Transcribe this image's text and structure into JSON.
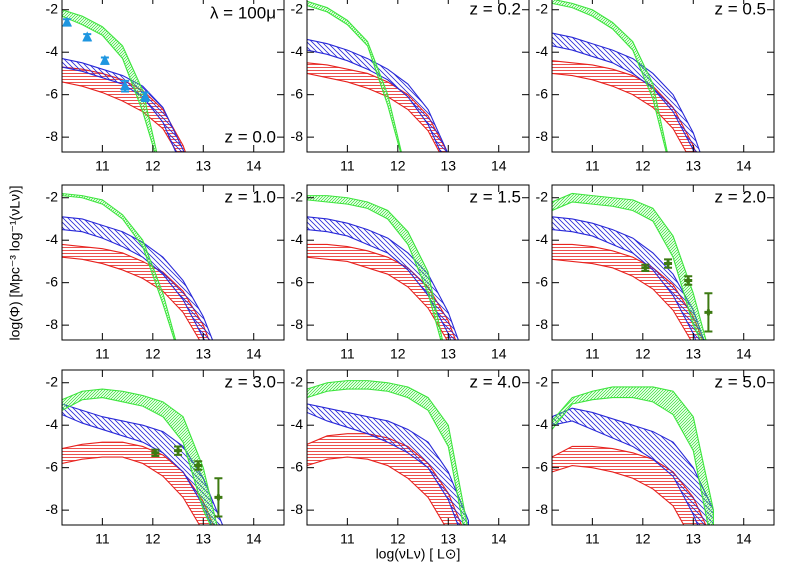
{
  "figure": {
    "x_label": "log(νLν)  [ L⊙]",
    "y_label": "log(Φ)  [Mpc⁻³ log⁻¹(νLν)]"
  },
  "chart_data": [
    {
      "type": "band",
      "title": "λ = 100μ",
      "label": "z = 0.0",
      "xlim": [
        10.2,
        14.6
      ],
      "ylim": [
        -8.7,
        -1.4
      ],
      "xticks": [
        11,
        12,
        13,
        14
      ],
      "yticks": [
        -2,
        -4,
        -6,
        -8
      ],
      "x": [
        10.2,
        10.6,
        11.0,
        11.4,
        11.8,
        12.2,
        12.6,
        13.0,
        13.4
      ],
      "series": [
        {
          "color": "#e8231f",
          "hatch": "horizontal",
          "upper": [
            -4.7,
            -4.8,
            -5.0,
            -5.3,
            -5.8,
            -6.7,
            -8.4,
            -11,
            null
          ],
          "lower": [
            -5.4,
            -5.6,
            -5.9,
            -6.3,
            -6.8,
            -7.6,
            -9.2,
            -12,
            null
          ]
        },
        {
          "color": "#2a2ad8",
          "hatch": "backslash",
          "upper": [
            -4.3,
            -4.5,
            -4.8,
            -5.1,
            -5.6,
            -6.6,
            -8.6,
            -11,
            null
          ],
          "lower": [
            -4.7,
            -4.9,
            -5.2,
            -5.5,
            -6.1,
            -7.3,
            -9.5,
            -12,
            null
          ]
        },
        {
          "color": "#3ee63e",
          "hatch": "slash",
          "upper": [
            -2.0,
            -2.3,
            -2.8,
            -3.7,
            -5.8,
            -10,
            null,
            null,
            null
          ],
          "lower": [
            -2.3,
            -2.7,
            -3.2,
            -4.3,
            -6.8,
            -10,
            null,
            null,
            null
          ]
        }
      ],
      "points": {
        "marker": "triangle",
        "color": "#1e96e0",
        "x": [
          10.3,
          10.7,
          11.05,
          11.45,
          11.85
        ],
        "values": [
          -2.6,
          -3.3,
          -4.4,
          -5.6,
          -6.1
        ],
        "errors": [
          0.15,
          0.15,
          0.15,
          0.25,
          0.2
        ]
      }
    },
    {
      "type": "band",
      "label": "z = 0.2",
      "xlim": [
        10.2,
        14.6
      ],
      "ylim": [
        -8.7,
        -1.4
      ],
      "xticks": [
        11,
        12,
        13,
        14
      ],
      "yticks": [
        -2,
        -4,
        -6,
        -8
      ],
      "x": [
        10.2,
        10.6,
        11.0,
        11.4,
        11.8,
        12.2,
        12.6,
        13.0,
        13.4
      ],
      "series": [
        {
          "color": "#e8231f",
          "hatch": "horizontal",
          "upper": [
            -4.5,
            -4.6,
            -4.8,
            -5.0,
            -5.4,
            -6.0,
            -7.0,
            -8.8,
            -11
          ],
          "lower": [
            -5.0,
            -5.2,
            -5.4,
            -5.7,
            -6.1,
            -6.7,
            -7.7,
            -9.5,
            -12
          ]
        },
        {
          "color": "#2a2ad8",
          "hatch": "backslash",
          "upper": [
            -3.4,
            -3.6,
            -3.9,
            -4.3,
            -4.8,
            -5.5,
            -6.7,
            -8.8,
            -11
          ],
          "lower": [
            -3.9,
            -4.1,
            -4.4,
            -4.8,
            -5.3,
            -6.1,
            -7.4,
            -9.5,
            -12
          ]
        },
        {
          "color": "#3ee63e",
          "hatch": "slash",
          "upper": [
            -1.6,
            -1.9,
            -2.5,
            -3.5,
            -6.0,
            -10,
            null,
            null,
            null
          ],
          "lower": [
            -1.8,
            -2.1,
            -2.7,
            -3.7,
            -6.5,
            -10,
            null,
            null,
            null
          ]
        }
      ]
    },
    {
      "type": "band",
      "label": "z = 0.5",
      "xlim": [
        10.2,
        14.6
      ],
      "ylim": [
        -8.7,
        -1.4
      ],
      "xticks": [
        11,
        12,
        13,
        14
      ],
      "yticks": [
        -2,
        -4,
        -6,
        -8
      ],
      "x": [
        10.2,
        10.6,
        11.0,
        11.4,
        11.8,
        12.2,
        12.6,
        13.0,
        13.4
      ],
      "series": [
        {
          "color": "#e8231f",
          "hatch": "horizontal",
          "upper": [
            -4.4,
            -4.5,
            -4.6,
            -4.8,
            -5.1,
            -5.6,
            -6.6,
            -8.4,
            -11
          ],
          "lower": [
            -5.0,
            -5.1,
            -5.3,
            -5.6,
            -6.0,
            -6.6,
            -7.6,
            -9.3,
            -12
          ]
        },
        {
          "color": "#2a2ad8",
          "hatch": "backslash",
          "upper": [
            -3.1,
            -3.3,
            -3.6,
            -3.9,
            -4.3,
            -5.0,
            -6.0,
            -7.8,
            -10.5
          ],
          "lower": [
            -3.7,
            -3.9,
            -4.2,
            -4.5,
            -5.0,
            -5.7,
            -6.8,
            -8.6,
            -11
          ]
        },
        {
          "color": "#3ee63e",
          "hatch": "slash",
          "upper": [
            -1.5,
            -1.7,
            -2.0,
            -2.6,
            -3.5,
            -5.5,
            -10,
            null,
            null
          ],
          "lower": [
            -1.7,
            -1.9,
            -2.3,
            -2.9,
            -3.9,
            -6.2,
            -10,
            null,
            null
          ]
        }
      ]
    },
    {
      "type": "band",
      "label": "z = 1.0",
      "xlim": [
        10.2,
        14.6
      ],
      "ylim": [
        -8.7,
        -1.4
      ],
      "xticks": [
        11,
        12,
        13,
        14
      ],
      "yticks": [
        -2,
        -4,
        -6,
        -8
      ],
      "x": [
        10.2,
        10.6,
        11.0,
        11.4,
        11.8,
        12.2,
        12.6,
        13.0,
        13.4
      ],
      "series": [
        {
          "color": "#e8231f",
          "hatch": "horizontal",
          "upper": [
            -4.2,
            -4.3,
            -4.4,
            -4.6,
            -5.0,
            -5.5,
            -6.4,
            -8,
            -10.5
          ],
          "lower": [
            -4.8,
            -4.9,
            -5.1,
            -5.4,
            -5.8,
            -6.4,
            -7.4,
            -9,
            -11.5
          ]
        },
        {
          "color": "#2a2ad8",
          "hatch": "backslash",
          "upper": [
            -2.9,
            -3.0,
            -3.3,
            -3.6,
            -4.1,
            -4.8,
            -5.9,
            -7.6,
            -10
          ],
          "lower": [
            -3.5,
            -3.6,
            -3.9,
            -4.3,
            -4.8,
            -5.6,
            -6.8,
            -8.6,
            -11
          ]
        },
        {
          "color": "#3ee63e",
          "hatch": "slash",
          "upper": [
            -1.8,
            -1.9,
            -2.1,
            -2.8,
            -4.0,
            -6.5,
            -10,
            null,
            null
          ],
          "lower": [
            -1.9,
            -2.0,
            -2.3,
            -3.0,
            -4.3,
            -7,
            -10,
            null,
            null
          ]
        }
      ]
    },
    {
      "type": "band",
      "label": "z = 1.5",
      "xlim": [
        10.2,
        14.6
      ],
      "ylim": [
        -8.7,
        -1.4
      ],
      "xticks": [
        11,
        12,
        13,
        14
      ],
      "yticks": [
        -2,
        -4,
        -6,
        -8
      ],
      "x": [
        10.2,
        10.6,
        11.0,
        11.4,
        11.8,
        12.2,
        12.6,
        13.0,
        13.4
      ],
      "series": [
        {
          "color": "#e8231f",
          "hatch": "horizontal",
          "upper": [
            -4.2,
            -4.2,
            -4.3,
            -4.5,
            -4.8,
            -5.3,
            -6.2,
            -7.8,
            -10.3
          ],
          "lower": [
            -4.8,
            -4.9,
            -5.0,
            -5.3,
            -5.6,
            -6.2,
            -7.2,
            -8.8,
            -11.2
          ]
        },
        {
          "color": "#2a2ad8",
          "hatch": "backslash",
          "upper": [
            -2.9,
            -3.0,
            -3.2,
            -3.5,
            -3.9,
            -4.6,
            -5.6,
            -7.4,
            -10
          ],
          "lower": [
            -3.5,
            -3.6,
            -3.8,
            -4.2,
            -4.6,
            -5.4,
            -6.6,
            -8.4,
            -11
          ]
        },
        {
          "color": "#3ee63e",
          "hatch": "slash",
          "upper": [
            -1.9,
            -1.9,
            -2.0,
            -2.2,
            -2.6,
            -3.6,
            -5.5,
            -10,
            null
          ],
          "lower": [
            -2.1,
            -2.2,
            -2.3,
            -2.5,
            -3.0,
            -4.2,
            -6.5,
            -10,
            null
          ]
        }
      ]
    },
    {
      "type": "band",
      "label": "z = 2.0",
      "xlim": [
        10.2,
        14.6
      ],
      "ylim": [
        -8.7,
        -1.4
      ],
      "xticks": [
        11,
        12,
        13,
        14
      ],
      "yticks": [
        -2,
        -4,
        -6,
        -8
      ],
      "x": [
        10.2,
        10.6,
        11.0,
        11.4,
        11.8,
        12.2,
        12.6,
        13.0,
        13.4
      ],
      "series": [
        {
          "color": "#e8231f",
          "hatch": "horizontal",
          "upper": [
            -4.2,
            -4.2,
            -4.3,
            -4.5,
            -4.8,
            -5.3,
            -6.1,
            -7.6,
            -10
          ],
          "lower": [
            -4.9,
            -5.0,
            -5.1,
            -5.3,
            -5.7,
            -6.3,
            -7.3,
            -8.9,
            -11.2
          ]
        },
        {
          "color": "#2a2ad8",
          "hatch": "backslash",
          "upper": [
            -2.9,
            -3.0,
            -3.2,
            -3.5,
            -3.9,
            -4.6,
            -5.6,
            -7.3,
            -10
          ],
          "lower": [
            -3.5,
            -3.6,
            -3.8,
            -4.2,
            -4.6,
            -5.4,
            -6.6,
            -8.4,
            -11
          ]
        },
        {
          "color": "#3ee63e",
          "hatch": "slash",
          "upper": [
            -2.2,
            -1.8,
            -1.9,
            -2.0,
            -2.1,
            -2.5,
            -3.8,
            -6.5,
            -10
          ],
          "lower": [
            -2.6,
            -2.2,
            -2.3,
            -2.4,
            -2.6,
            -3.1,
            -4.8,
            -8,
            -10
          ]
        }
      ],
      "points": {
        "marker": "plus",
        "color": "#3d7a12",
        "x": [
          12.05,
          12.5,
          12.9,
          13.3
        ],
        "values": [
          -5.3,
          -5.1,
          -5.9,
          -7.4
        ],
        "errors": [
          0.15,
          0.2,
          0.2,
          0.9
        ]
      }
    },
    {
      "type": "band",
      "label": "z = 3.0",
      "xlim": [
        10.2,
        14.6
      ],
      "ylim": [
        -8.7,
        -1.4
      ],
      "xticks": [
        11,
        12,
        13,
        14
      ],
      "yticks": [
        -2,
        -4,
        -6,
        -8
      ],
      "x": [
        10.2,
        10.6,
        11.0,
        11.4,
        11.8,
        12.2,
        12.6,
        13.0,
        13.4
      ],
      "series": [
        {
          "color": "#e8231f",
          "hatch": "horizontal",
          "upper": [
            -5.1,
            -4.9,
            -4.8,
            -4.8,
            -5.0,
            -5.4,
            -6.2,
            -7.6,
            -9.8
          ],
          "lower": [
            -5.8,
            -5.6,
            -5.5,
            -5.5,
            -5.8,
            -6.4,
            -7.4,
            -9,
            -11
          ]
        },
        {
          "color": "#2a2ad8",
          "hatch": "backslash",
          "upper": [
            -3.0,
            -3.3,
            -3.6,
            -3.8,
            -4.0,
            -4.3,
            -5.0,
            -6.5,
            -8.8
          ],
          "lower": [
            -3.5,
            -3.9,
            -4.2,
            -4.5,
            -4.8,
            -5.3,
            -6.2,
            -7.8,
            -10
          ]
        },
        {
          "color": "#3ee63e",
          "hatch": "slash",
          "upper": [
            -2.8,
            -2.4,
            -2.3,
            -2.4,
            -2.6,
            -2.9,
            -3.6,
            -6,
            -10
          ],
          "lower": [
            -3.3,
            -2.8,
            -2.7,
            -2.9,
            -3.1,
            -3.6,
            -4.8,
            -8,
            -10
          ]
        }
      ],
      "points": {
        "marker": "plus",
        "color": "#3d7a12",
        "x": [
          12.05,
          12.5,
          12.9,
          13.3
        ],
        "values": [
          -5.3,
          -5.2,
          -5.9,
          -7.4
        ],
        "errors": [
          0.15,
          0.2,
          0.2,
          0.9
        ]
      }
    },
    {
      "type": "band",
      "label": "z = 4.0",
      "xlim": [
        10.2,
        14.6
      ],
      "ylim": [
        -8.7,
        -1.4
      ],
      "xticks": [
        11,
        12,
        13,
        14
      ],
      "yticks": [
        -2,
        -4,
        -6,
        -8
      ],
      "x": [
        10.2,
        10.6,
        11.0,
        11.4,
        11.8,
        12.2,
        12.6,
        13.0,
        13.4
      ],
      "series": [
        {
          "color": "#e8231f",
          "hatch": "horizontal",
          "upper": [
            -4.9,
            -4.5,
            -4.4,
            -4.4,
            -4.6,
            -5.0,
            -5.8,
            -7.2,
            -9.5
          ],
          "lower": [
            -5.9,
            -5.6,
            -5.5,
            -5.6,
            -5.9,
            -6.5,
            -7.4,
            -9,
            -11
          ]
        },
        {
          "color": "#2a2ad8",
          "hatch": "backslash",
          "upper": [
            -3.0,
            -3.2,
            -3.4,
            -3.6,
            -3.8,
            -4.2,
            -4.8,
            -6.2,
            -8.5
          ],
          "lower": [
            -3.4,
            -3.8,
            -4.1,
            -4.4,
            -4.8,
            -5.3,
            -6.0,
            -7.5,
            -10
          ]
        },
        {
          "color": "#3ee63e",
          "hatch": "slash",
          "upper": [
            -2.3,
            -2.0,
            -1.9,
            -1.9,
            -2.0,
            -2.2,
            -2.7,
            -4,
            -9
          ],
          "lower": [
            -2.7,
            -2.4,
            -2.3,
            -2.3,
            -2.4,
            -2.7,
            -3.3,
            -5,
            -10
          ]
        }
      ]
    },
    {
      "type": "band",
      "label": "z = 5.0",
      "xlim": [
        10.2,
        14.6
      ],
      "ylim": [
        -8.7,
        -1.4
      ],
      "xticks": [
        11,
        12,
        13,
        14
      ],
      "yticks": [
        -2,
        -4,
        -6,
        -8
      ],
      "x": [
        10.2,
        10.6,
        11.0,
        11.4,
        11.8,
        12.2,
        12.6,
        13.0,
        13.4
      ],
      "series": [
        {
          "color": "#e8231f",
          "hatch": "horizontal",
          "upper": [
            -5.5,
            -5.0,
            -5.0,
            -5.1,
            -5.3,
            -5.6,
            -6.2,
            -7.4,
            -9.5
          ],
          "lower": [
            -6.2,
            -5.9,
            -6.0,
            -6.2,
            -6.5,
            -7.0,
            -7.8,
            -9.5,
            -11
          ]
        },
        {
          "color": "#2a2ad8",
          "hatch": "backslash",
          "upper": [
            -3.6,
            -3.2,
            -3.4,
            -3.7,
            -4.0,
            -4.3,
            -4.8,
            -6.0,
            -8
          ],
          "lower": [
            -4.0,
            -3.8,
            -4.2,
            -4.6,
            -5.0,
            -5.6,
            -6.4,
            -8.2,
            -10.5
          ]
        },
        {
          "color": "#3ee63e",
          "hatch": "slash",
          "upper": [
            -3.8,
            -2.7,
            -2.4,
            -2.2,
            -2.2,
            -2.2,
            -2.4,
            -3.6,
            -8
          ],
          "lower": [
            -4.2,
            -3.0,
            -2.8,
            -2.7,
            -2.7,
            -2.9,
            -3.5,
            -5.2,
            -10
          ]
        }
      ]
    }
  ]
}
